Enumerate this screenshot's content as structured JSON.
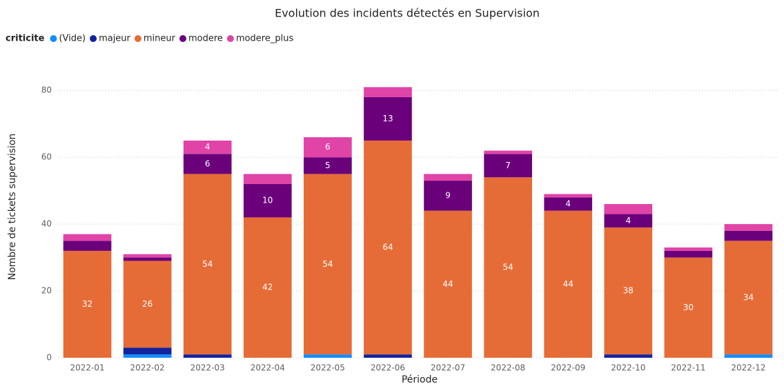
{
  "chart_data": {
    "type": "stacked_bar",
    "title": "Evolution des incidents détectés en Supervision",
    "legend_title": "criticite",
    "x_label": "Période",
    "y_label": "Nombre de tickets supervision",
    "categories": [
      "2022-01",
      "2022-02",
      "2022-03",
      "2022-04",
      "2022-05",
      "2022-06",
      "2022-07",
      "2022-08",
      "2022-09",
      "2022-10",
      "2022-11",
      "2022-12"
    ],
    "series": [
      {
        "name": "(Vide)",
        "color": "#118DFF",
        "values": [
          0,
          1,
          0,
          0,
          1,
          0,
          0,
          0,
          0,
          0,
          0,
          1
        ]
      },
      {
        "name": "majeur",
        "color": "#12239E",
        "values": [
          0,
          2,
          1,
          0,
          0,
          1,
          0,
          0,
          0,
          1,
          0,
          0
        ]
      },
      {
        "name": "mineur",
        "color": "#E66C37",
        "values": [
          32,
          26,
          54,
          42,
          54,
          64,
          44,
          54,
          44,
          38,
          30,
          34
        ]
      },
      {
        "name": "modere",
        "color": "#6B007B",
        "values": [
          3,
          1,
          6,
          10,
          5,
          13,
          9,
          7,
          4,
          4,
          2,
          3
        ]
      },
      {
        "name": "modere_plus",
        "color": "#E044A7",
        "values": [
          2,
          1,
          4,
          3,
          6,
          3,
          2,
          1,
          1,
          3,
          1,
          2
        ]
      }
    ],
    "ylim": [
      0,
      85
    ],
    "yticks": [
      0,
      20,
      40,
      60,
      80
    ],
    "grid": true
  }
}
